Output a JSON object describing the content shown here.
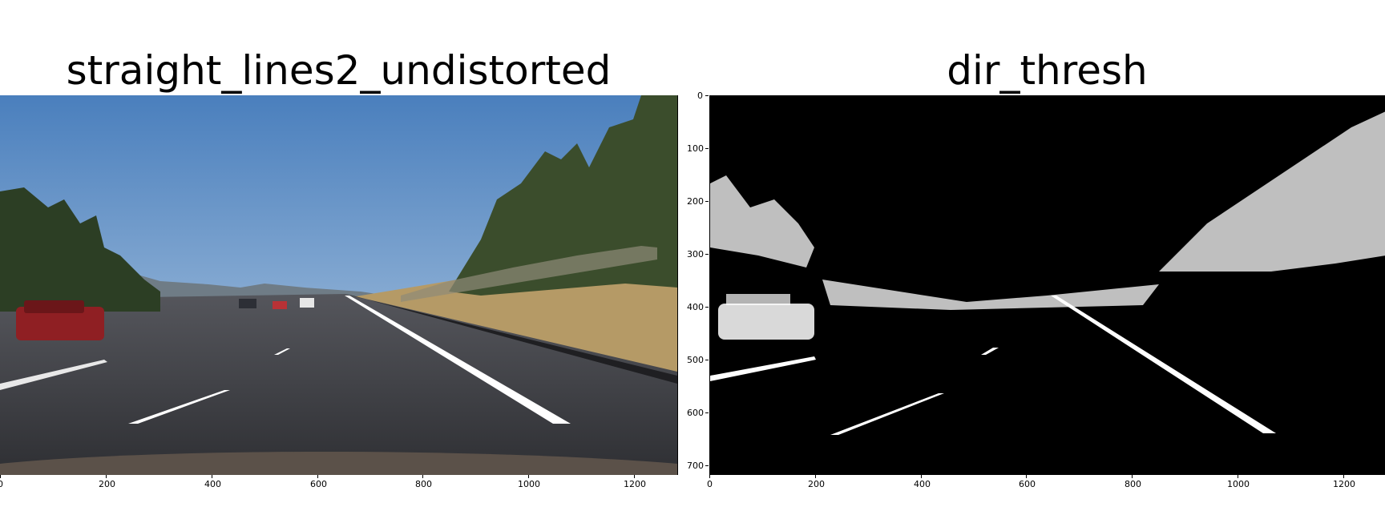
{
  "figure": {
    "left_panel": {
      "title": "straight_lines2_undistorted",
      "x_ticks": [
        "0",
        "200",
        "400",
        "600",
        "800",
        "1000",
        "1200"
      ]
    },
    "right_panel": {
      "title": "dir_thresh",
      "x_ticks": [
        "0",
        "200",
        "400",
        "600",
        "800",
        "1000",
        "1200"
      ],
      "y_ticks": [
        "0",
        "100",
        "200",
        "300",
        "400",
        "500",
        "600",
        "700"
      ]
    },
    "image_size": {
      "width": 1280,
      "height": 720
    }
  },
  "colors": {
    "sky_top": "#4a7fbd",
    "sky_bottom": "#b9cfe4",
    "road": "#3a3b40",
    "grass": "#b59a66",
    "trees": "#3b4d2c",
    "lane": "#ffffff",
    "car_red": "#8f1f23"
  }
}
